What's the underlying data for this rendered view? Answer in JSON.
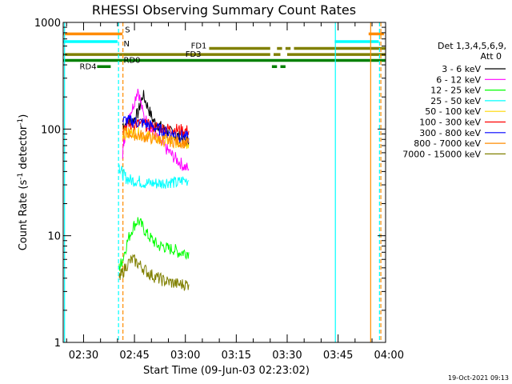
{
  "chart_data": {
    "type": "line",
    "title": "RHESSI Observing Summary Count Rates",
    "xlabel": "Start Time (09-Jun-03 02:23:02)",
    "ylabel_main": "Count Rate (s",
    "ylabel_sup1": "-1",
    "ylabel_mid": " detector",
    "ylabel_sup2": "-1",
    "ylabel_end": ")",
    "yscale": "log",
    "ylim": [
      1,
      1000
    ],
    "xlim_minutes": [
      24.0,
      119.0
    ],
    "x_ticks": [
      {
        "m": 30,
        "label": "02:30"
      },
      {
        "m": 45,
        "label": "02:45"
      },
      {
        "m": 60,
        "label": "03:00"
      },
      {
        "m": 75,
        "label": "03:15"
      },
      {
        "m": 90,
        "label": "03:30"
      },
      {
        "m": 105,
        "label": "03:45"
      },
      {
        "m": 120,
        "label": "04:00"
      }
    ],
    "y_ticks": [
      {
        "v": 1,
        "label": "1"
      },
      {
        "v": 10,
        "label": "10"
      },
      {
        "v": 100,
        "label": "100"
      },
      {
        "v": 1000,
        "label": "1000"
      }
    ],
    "legend_title": "Det 1,3,4,5,6,9,",
    "legend_subtitle": "Att 0",
    "timestamp": "19-Oct-2021 09:13",
    "series": [
      {
        "name": "3 - 6 keV",
        "color": "#000000",
        "x": [
          41.5,
          43,
          44.5,
          46,
          47.5,
          49,
          50.5,
          52,
          53.5,
          55,
          56.5,
          58,
          59.5,
          61
        ],
        "values": [
          110,
          115,
          120,
          140,
          210,
          160,
          120,
          110,
          100,
          95,
          90,
          85,
          80,
          75
        ]
      },
      {
        "name": "6 - 12 keV",
        "color": "#ff00ff",
        "x": [
          41.5,
          42,
          43,
          44.5,
          46,
          47.5,
          49,
          50.5,
          52,
          53.5,
          55,
          56.5,
          58,
          59.5,
          61
        ],
        "values": [
          60,
          80,
          130,
          160,
          240,
          140,
          110,
          90,
          80,
          70,
          62,
          55,
          50,
          45,
          42
        ]
      },
      {
        "name": "12 - 25 keV",
        "color": "#00ff00",
        "x": [
          40.5,
          41.5,
          43,
          44.5,
          46,
          47.5,
          49,
          50.5,
          52,
          53.5,
          55,
          56.5,
          58,
          59.5,
          61
        ],
        "values": [
          5,
          6,
          9,
          12,
          14,
          12,
          10,
          9,
          8,
          8,
          7.5,
          7.5,
          7,
          7,
          7
        ]
      },
      {
        "name": "25 - 50 keV",
        "color": "#00ffff",
        "x": [
          40.5,
          41.5,
          42.5,
          44,
          45.5,
          47,
          48.5,
          50,
          51.5,
          53,
          54.5,
          56,
          57.5,
          59,
          61
        ],
        "values": [
          45,
          38,
          35,
          33,
          33,
          32,
          31,
          31,
          31,
          31,
          32,
          32,
          31,
          33,
          33
        ]
      },
      {
        "name": "50 - 100 keV",
        "color": "#ffd700",
        "x": [
          41.5,
          43,
          44.5,
          46,
          47.5,
          49,
          50.5,
          52,
          53.5,
          55,
          56.5,
          58,
          59.5,
          61
        ],
        "values": [
          90,
          90,
          95,
          92,
          88,
          85,
          82,
          80,
          78,
          78,
          76,
          75,
          74,
          72
        ]
      },
      {
        "name": "100 - 300 keV",
        "color": "#ff0000",
        "x": [
          41.5,
          43,
          44.5,
          46,
          47.5,
          49,
          50.5,
          52,
          53.5,
          55,
          56.5,
          58,
          59.5,
          61
        ],
        "values": [
          105,
          108,
          110,
          112,
          110,
          108,
          105,
          104,
          102,
          100,
          100,
          98,
          97,
          96
        ]
      },
      {
        "name": "300 - 800 keV",
        "color": "#0000ff",
        "x": [
          41.5,
          43,
          44.5,
          46,
          47.5,
          49,
          50.5,
          52,
          53.5,
          55,
          56.5,
          58,
          59.5,
          61
        ],
        "values": [
          120,
          120,
          118,
          116,
          114,
          110,
          105,
          100,
          95,
          92,
          90,
          88,
          85,
          82
        ]
      },
      {
        "name": "800 - 7000 keV",
        "color": "#ff8c00",
        "x": [
          41.5,
          43,
          44.5,
          46,
          47.5,
          49,
          50.5,
          52,
          53.5,
          55,
          56.5,
          58,
          59.5,
          61
        ],
        "values": [
          95,
          92,
          90,
          88,
          86,
          84,
          82,
          80,
          79,
          78,
          77,
          76,
          75,
          74
        ]
      },
      {
        "name": "7000 - 15000 keV",
        "color": "#808000",
        "x": [
          40.5,
          41.5,
          43,
          44.5,
          46,
          47.5,
          49,
          50.5,
          52,
          53.5,
          55,
          56.5,
          58,
          59.5,
          61
        ],
        "values": [
          4,
          4.5,
          5.5,
          6,
          5.5,
          5,
          4.5,
          4.2,
          4,
          3.8,
          3.7,
          3.6,
          3.5,
          3.5,
          3.5
        ]
      }
    ],
    "flag_bars": [
      {
        "label": "S",
        "color": "#ff8c00",
        "value": 780,
        "segments": [
          [
            24,
            41.5
          ],
          [
            114,
            118.5
          ]
        ]
      },
      {
        "label": "",
        "color": "#00ffff",
        "value": 660,
        "segments": [
          [
            24,
            40
          ],
          [
            104,
            117
          ]
        ]
      },
      {
        "label": "FD1",
        "color": "#808000",
        "value": 570,
        "segments": [
          [
            67,
            85
          ],
          [
            87,
            88.5
          ],
          [
            89.5,
            91
          ],
          [
            92,
            119
          ]
        ]
      },
      {
        "label": "FD3",
        "color": "#808000",
        "value": 500,
        "segments": [
          [
            24,
            85
          ],
          [
            86,
            88
          ],
          [
            90,
            119
          ]
        ]
      },
      {
        "label": "RD0",
        "color": "#008000",
        "value": 440,
        "segments": [
          [
            24,
            119
          ]
        ]
      },
      {
        "label": "RD4",
        "color": "#008000",
        "value": 385,
        "segments": [
          [
            34,
            38
          ],
          [
            85.5,
            87
          ],
          [
            88,
            89.5
          ]
        ]
      }
    ],
    "vertical_lines": [
      {
        "m": 24.4,
        "color": "#00ffff",
        "style": "solid"
      },
      {
        "m": 40.3,
        "color": "#00ffff",
        "style": "dashed"
      },
      {
        "m": 41.6,
        "color": "#ff8c00",
        "style": "dashed"
      },
      {
        "m": 104.2,
        "color": "#00ffff",
        "style": "solid"
      },
      {
        "m": 114.6,
        "color": "#ff8c00",
        "style": "solid"
      },
      {
        "m": 117.2,
        "color": "#00ffff",
        "style": "dashed"
      },
      {
        "m": 117.6,
        "color": "#ff8c00",
        "style": "dashed"
      }
    ],
    "line_labels": [
      {
        "text": "N",
        "color": "#00ffff",
        "m": 41.8,
        "v": 640
      }
    ]
  }
}
